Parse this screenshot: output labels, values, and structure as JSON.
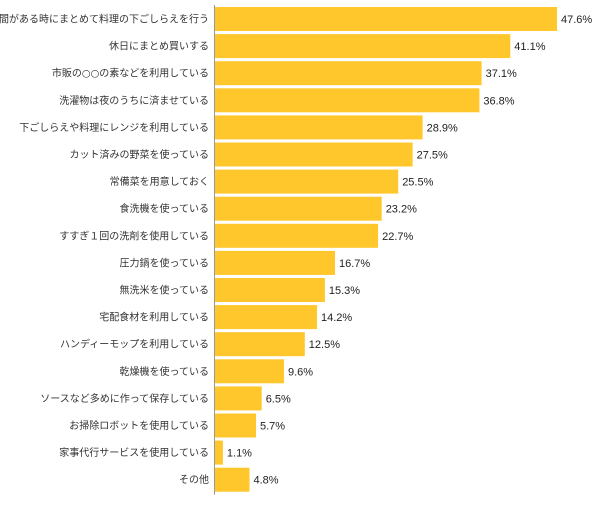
{
  "chart_data": {
    "type": "bar",
    "orientation": "horizontal",
    "title": "",
    "xlabel": "",
    "ylabel": "",
    "unit": "%",
    "xlim": [
      0,
      50
    ],
    "grid": false,
    "legend": "none",
    "bar_color": "#FFC72C",
    "axis_color": "#999999",
    "categories": [
      "時間がある時にまとめて料理の下ごしらえを行う",
      "休日にまとめ買いする",
      "市販の○○の素などを利用している",
      "洗濯物は夜のうちに済ませている",
      "下ごしらえや料理にレンジを利用している",
      "カット済みの野菜を使っている",
      "常備菜を用意しておく",
      "食洗機を使っている",
      "すすぎ１回の洗剤を使用している",
      "圧力鍋を使っている",
      "無洗米を使っている",
      "宅配食材を利用している",
      "ハンディーモップを利用している",
      "乾燥機を使っている",
      "ソースなど多めに作って保存している",
      "お掃除ロボットを使用している",
      "家事代行サービスを使用している",
      "その他"
    ],
    "values": [
      47.6,
      41.1,
      37.1,
      36.8,
      28.9,
      27.5,
      25.5,
      23.2,
      22.7,
      16.7,
      15.3,
      14.2,
      12.5,
      9.6,
      6.5,
      5.7,
      1.1,
      4.8
    ]
  }
}
